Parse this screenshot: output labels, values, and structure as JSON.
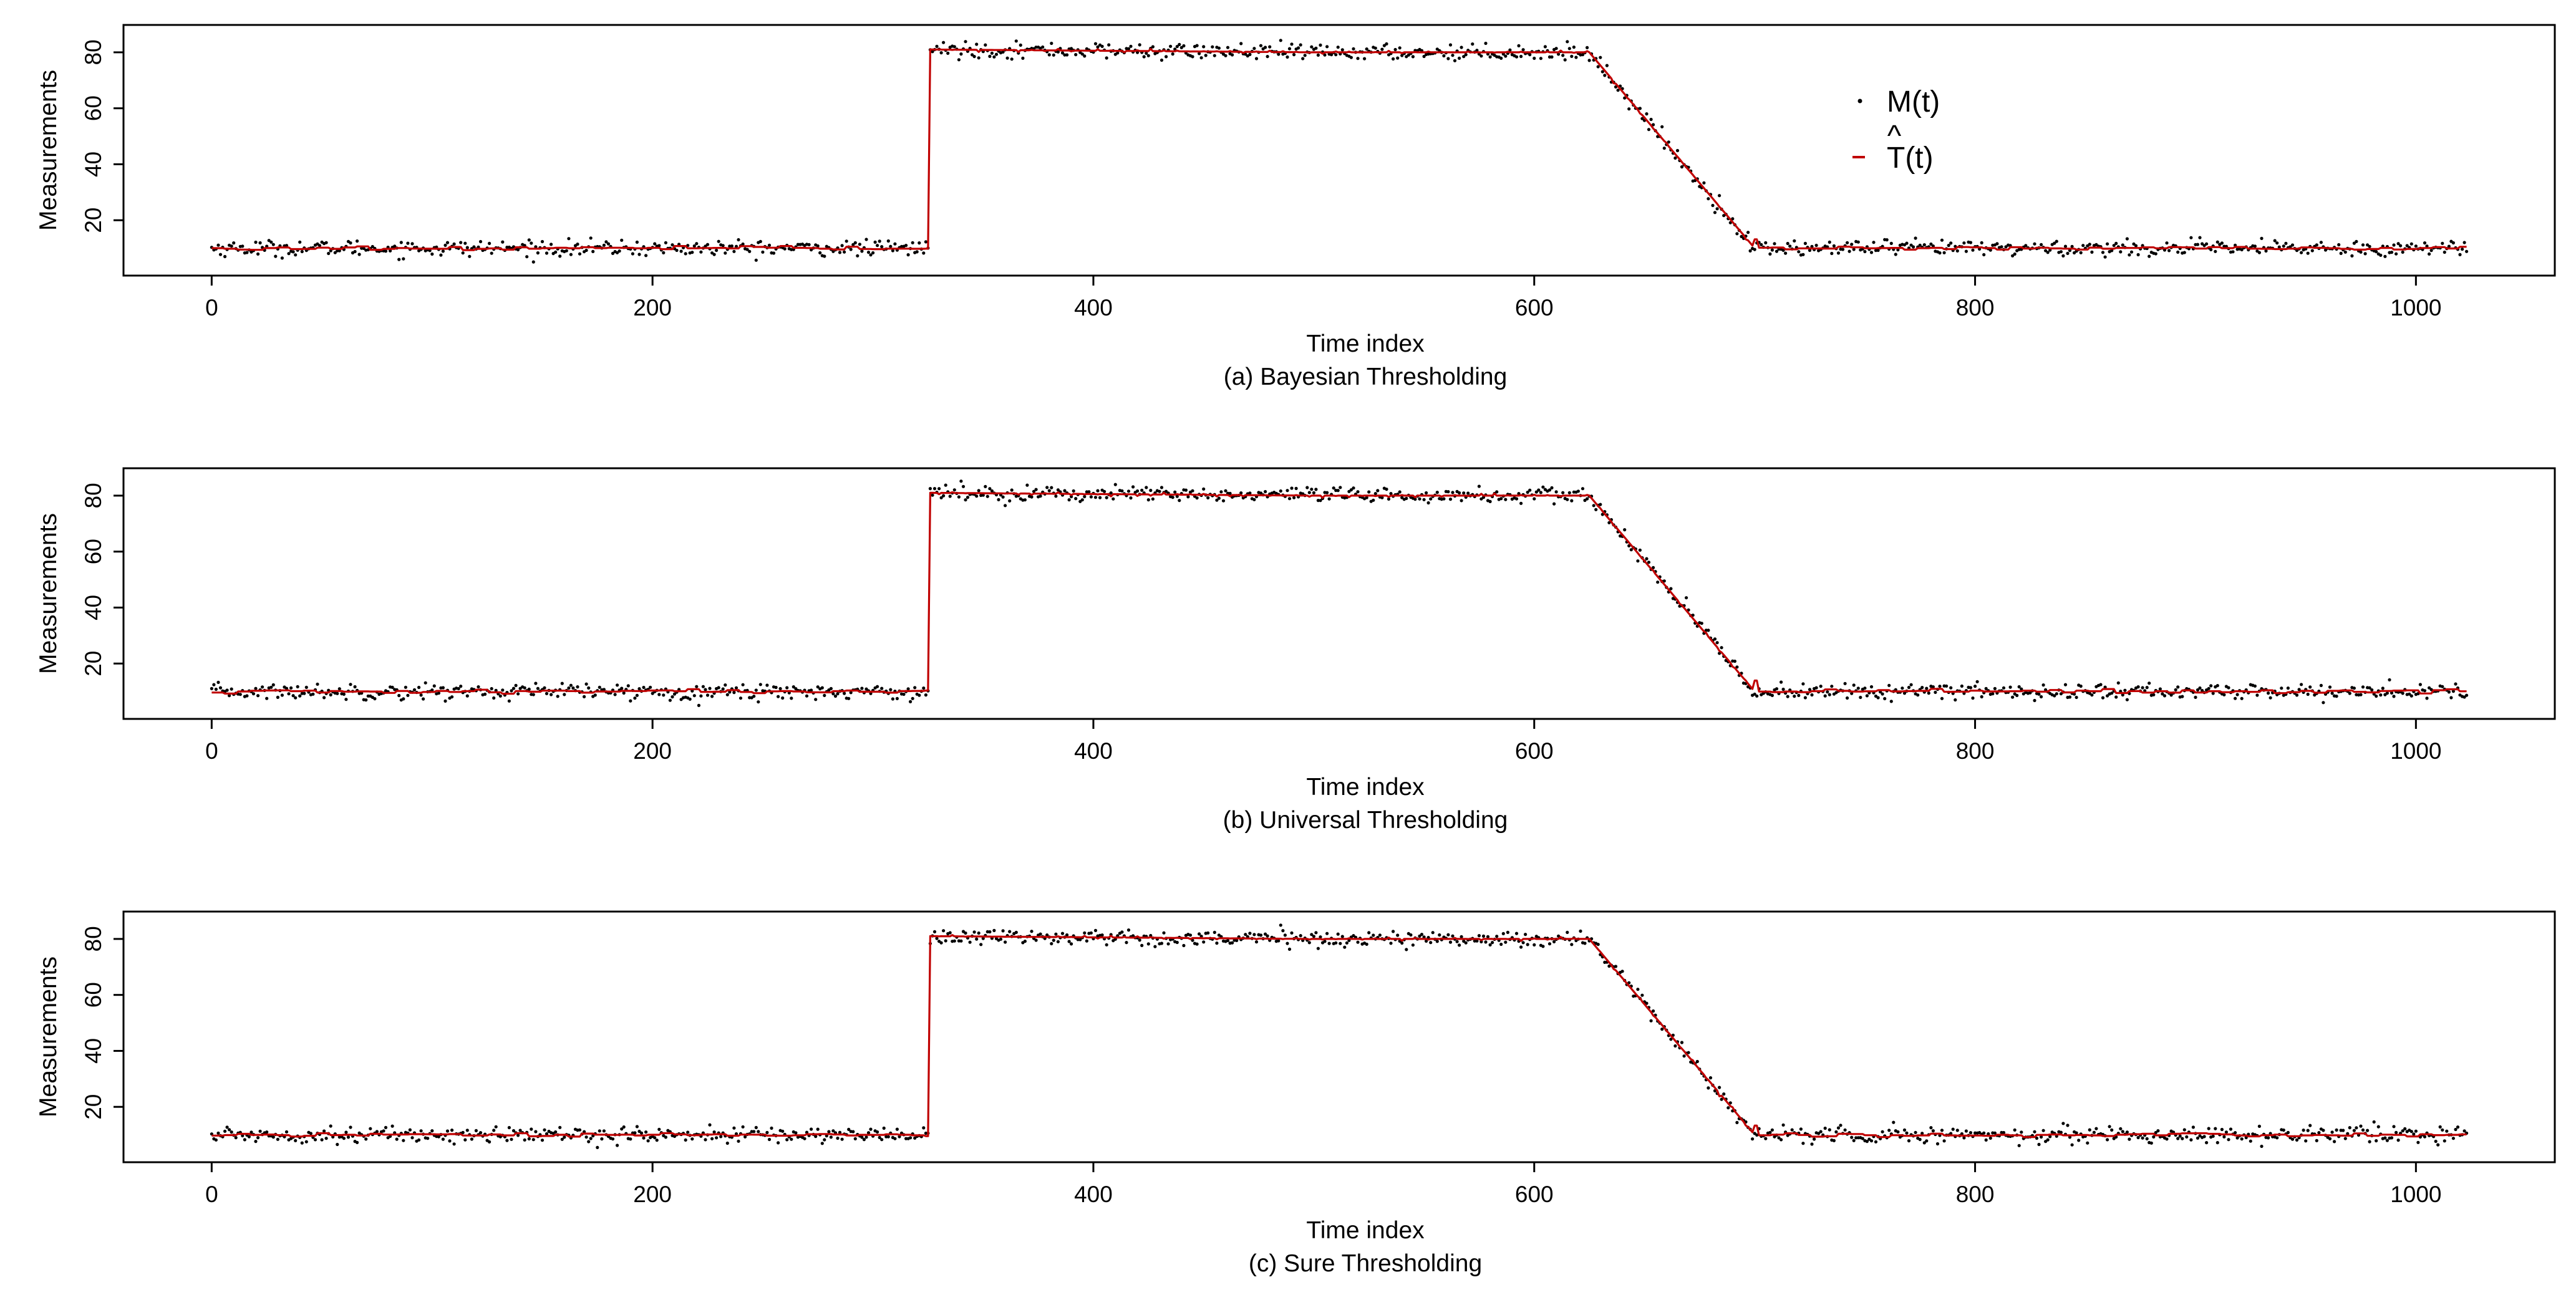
{
  "figure": {
    "panels": [
      {
        "caption": "(a) Bayesian Thresholding"
      },
      {
        "caption": "(b) Universal Thresholding"
      },
      {
        "caption": "(c) Sure Thresholding"
      }
    ],
    "legend": {
      "items": [
        {
          "label": "M(t)",
          "hat": "",
          "color": "#000000",
          "marker": "dot"
        },
        {
          "label": "T(t)",
          "hat": "^",
          "color": "#c00000",
          "marker": "line"
        }
      ]
    }
  },
  "colors": {
    "measurement": "#000000",
    "estimate": "#c00000",
    "axis": "#000000"
  },
  "chart_data": [
    {
      "type": "scatter",
      "xlabel": "Time index",
      "ylabel": "Measurements",
      "xticks": [
        0,
        200,
        400,
        600,
        800,
        1000
      ],
      "yticks": [
        20,
        40,
        60,
        80
      ],
      "xlim": [
        -40,
        1063
      ],
      "ylim": [
        2,
        88
      ],
      "series": [
        {
          "name": "M(t)",
          "style": "points",
          "n": 1024,
          "noise_sd": 1.4,
          "profile": [
            [
              0,
              10
            ],
            [
              325,
              10
            ],
            [
              326,
              81
            ],
            [
              500,
              80
            ],
            [
              625,
              80
            ],
            [
              700,
              10
            ],
            [
              1023,
              10
            ]
          ]
        },
        {
          "name": "T(t)",
          "hat": "^",
          "style": "line",
          "n": 1024,
          "profile": [
            [
              0,
              10
            ],
            [
              325,
              10
            ],
            [
              326,
              81
            ],
            [
              500,
              80
            ],
            [
              625,
              80
            ],
            [
              700,
              10
            ],
            [
              1023,
              10
            ]
          ]
        }
      ]
    },
    {
      "type": "scatter",
      "xlabel": "Time index",
      "ylabel": "Measurements",
      "xticks": [
        0,
        200,
        400,
        600,
        800,
        1000
      ],
      "yticks": [
        20,
        40,
        60,
        80
      ],
      "xlim": [
        -40,
        1063
      ],
      "ylim": [
        2,
        88
      ],
      "series": [
        {
          "name": "M(t)",
          "style": "points",
          "n": 1024,
          "noise_sd": 1.4,
          "profile": [
            [
              0,
              10
            ],
            [
              325,
              10
            ],
            [
              326,
              81
            ],
            [
              500,
              80
            ],
            [
              625,
              80
            ],
            [
              700,
              10
            ],
            [
              1023,
              10
            ]
          ]
        },
        {
          "name": "T(t)",
          "hat": "^",
          "style": "line",
          "n": 1024,
          "profile": [
            [
              0,
              10
            ],
            [
              325,
              10
            ],
            [
              326,
              81
            ],
            [
              500,
              80
            ],
            [
              625,
              80
            ],
            [
              700,
              10
            ],
            [
              1023,
              10
            ]
          ]
        }
      ]
    },
    {
      "type": "scatter",
      "xlabel": "Time index",
      "ylabel": "Measurements",
      "xticks": [
        0,
        200,
        400,
        600,
        800,
        1000
      ],
      "yticks": [
        20,
        40,
        60,
        80
      ],
      "xlim": [
        -40,
        1063
      ],
      "ylim": [
        2,
        88
      ],
      "series": [
        {
          "name": "M(t)",
          "style": "points",
          "n": 1024,
          "noise_sd": 1.4,
          "profile": [
            [
              0,
              10
            ],
            [
              325,
              10
            ],
            [
              326,
              81
            ],
            [
              500,
              80
            ],
            [
              625,
              80
            ],
            [
              700,
              10
            ],
            [
              1023,
              10
            ]
          ]
        },
        {
          "name": "T(t)",
          "hat": "^",
          "style": "line",
          "n": 1024,
          "profile": [
            [
              0,
              10
            ],
            [
              325,
              10
            ],
            [
              326,
              81
            ],
            [
              500,
              80
            ],
            [
              625,
              80
            ],
            [
              700,
              10
            ],
            [
              1023,
              10
            ]
          ]
        }
      ]
    }
  ]
}
